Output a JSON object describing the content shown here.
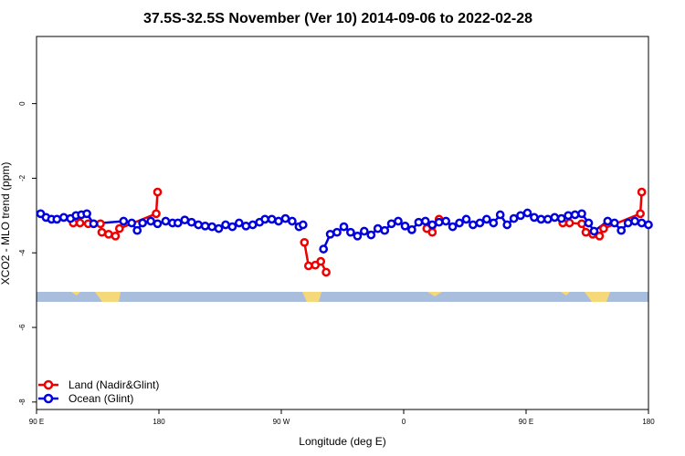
{
  "chart_data": {
    "type": "line",
    "title": "37.5S-32.5S November (Ver 10)   2014-09-06 to 2022-02-28",
    "xlabel": "Longitude (deg E)",
    "ylabel": "XCO2 - MLO trend (ppm)",
    "xlim": [
      90,
      540
    ],
    "ylim": [
      -8.2,
      1.8
    ],
    "x_ticks": [
      {
        "value": 90,
        "label": "90 E"
      },
      {
        "value": 180,
        "label": "180"
      },
      {
        "value": 270,
        "label": "90 W"
      },
      {
        "value": 360,
        "label": "0"
      },
      {
        "value": 450,
        "label": "90 E"
      },
      {
        "value": 540,
        "label": "180"
      }
    ],
    "y_ticks": [
      {
        "value": 0,
        "label": "0"
      },
      {
        "value": -2,
        "label": "-2"
      },
      {
        "value": -4,
        "label": "-4"
      },
      {
        "value": -6,
        "label": "-6"
      },
      {
        "value": -8,
        "label": "-8"
      }
    ],
    "land_band": {
      "y_top": -5.05,
      "y_bottom": -5.3,
      "ocean_color": "#a8bedc",
      "land_color": "#f5d87a"
    },
    "legend_position": "bottom-left",
    "series": [
      {
        "name": "Land (Nadir&Glint)",
        "color": "#ee0000",
        "segments": [
          [
            [
              117,
              -3.2
            ],
            [
              122,
              -3.2
            ],
            [
              128,
              -3.22
            ],
            [
              137,
              -3.22
            ],
            [
              138,
              -3.45
            ],
            [
              143,
              -3.5
            ],
            [
              148,
              -3.55
            ],
            [
              151,
              -3.35
            ],
            [
              178,
              -2.95
            ],
            [
              179,
              -2.37
            ]
          ],
          [
            [
              287,
              -3.72
            ],
            [
              290,
              -4.35
            ],
            [
              295,
              -4.33
            ],
            [
              299,
              -4.23
            ],
            [
              303,
              -4.52
            ]
          ],
          [
            [
              377,
              -3.35
            ],
            [
              381,
              -3.45
            ],
            [
              386,
              -3.1
            ]
          ],
          [
            [
              477,
              -3.2
            ],
            [
              482,
              -3.2
            ],
            [
              491,
              -3.22
            ],
            [
              494,
              -3.45
            ],
            [
              499,
              -3.5
            ],
            [
              504,
              -3.55
            ],
            [
              507,
              -3.35
            ],
            [
              534,
              -2.95
            ],
            [
              535,
              -2.37
            ]
          ]
        ]
      },
      {
        "name": "Ocean (Glint)",
        "color": "#0000dd",
        "segments": [
          [
            [
              93,
              -2.95
            ],
            [
              97,
              -3.05
            ],
            [
              101,
              -3.1
            ],
            [
              105,
              -3.1
            ],
            [
              110,
              -3.05
            ],
            [
              115,
              -3.08
            ],
            [
              119,
              -3.0
            ],
            [
              123,
              -2.98
            ],
            [
              127,
              -2.95
            ],
            [
              132,
              -3.22
            ],
            [
              154,
              -3.15
            ],
            [
              160,
              -3.2
            ],
            [
              164,
              -3.4
            ],
            [
              168,
              -3.2
            ],
            [
              174,
              -3.15
            ],
            [
              179,
              -3.22
            ],
            [
              185,
              -3.15
            ],
            [
              190,
              -3.2
            ],
            [
              194,
              -3.2
            ],
            [
              199,
              -3.12
            ],
            [
              204,
              -3.18
            ],
            [
              209,
              -3.25
            ],
            [
              214,
              -3.28
            ],
            [
              219,
              -3.3
            ],
            [
              224,
              -3.35
            ],
            [
              229,
              -3.25
            ],
            [
              234,
              -3.3
            ],
            [
              239,
              -3.2
            ],
            [
              244,
              -3.28
            ],
            [
              249,
              -3.25
            ],
            [
              254,
              -3.18
            ],
            [
              258,
              -3.1
            ],
            [
              263,
              -3.1
            ],
            [
              268,
              -3.15
            ],
            [
              273,
              -3.08
            ],
            [
              278,
              -3.15
            ],
            [
              283,
              -3.3
            ],
            [
              286,
              -3.25
            ]
          ],
          [
            [
              301,
              -3.9
            ],
            [
              306,
              -3.5
            ],
            [
              311,
              -3.45
            ],
            [
              316,
              -3.3
            ],
            [
              321,
              -3.45
            ],
            [
              326,
              -3.55
            ],
            [
              331,
              -3.42
            ],
            [
              336,
              -3.52
            ],
            [
              341,
              -3.35
            ],
            [
              346,
              -3.4
            ],
            [
              351,
              -3.22
            ],
            [
              356,
              -3.15
            ],
            [
              361,
              -3.28
            ],
            [
              366,
              -3.38
            ],
            [
              371,
              -3.18
            ],
            [
              376,
              -3.15
            ],
            [
              381,
              -3.25
            ],
            [
              386,
              -3.18
            ],
            [
              391,
              -3.15
            ],
            [
              396,
              -3.3
            ],
            [
              401,
              -3.2
            ],
            [
              406,
              -3.1
            ],
            [
              411,
              -3.25
            ],
            [
              416,
              -3.2
            ],
            [
              421,
              -3.1
            ],
            [
              426,
              -3.2
            ],
            [
              431,
              -2.98
            ],
            [
              436,
              -3.25
            ],
            [
              441,
              -3.08
            ],
            [
              446,
              -3.0
            ],
            [
              451,
              -2.93
            ],
            [
              456,
              -3.05
            ],
            [
              461,
              -3.1
            ],
            [
              466,
              -3.1
            ],
            [
              471,
              -3.05
            ],
            [
              476,
              -3.08
            ],
            [
              481,
              -3.0
            ],
            [
              486,
              -2.98
            ],
            [
              491,
              -2.95
            ],
            [
              496,
              -3.2
            ],
            [
              500,
              -3.42
            ],
            [
              510,
              -3.15
            ],
            [
              515,
              -3.2
            ],
            [
              520,
              -3.4
            ],
            [
              525,
              -3.2
            ],
            [
              530,
              -3.15
            ],
            [
              535,
              -3.2
            ],
            [
              540,
              -3.25
            ]
          ]
        ]
      }
    ]
  }
}
